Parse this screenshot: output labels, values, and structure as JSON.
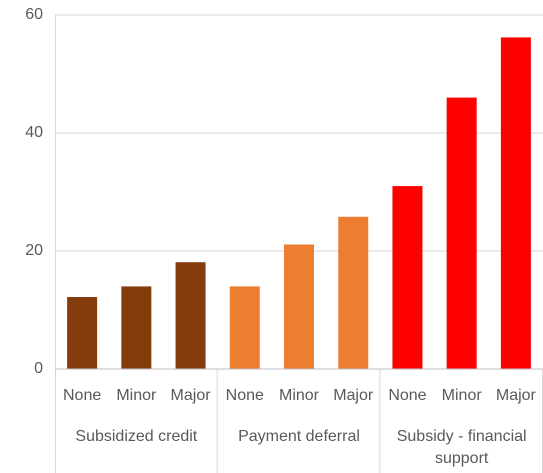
{
  "chart_data": {
    "type": "bar",
    "groups": [
      {
        "label": "Subsidized credit",
        "color": "#843c0c",
        "categories": [
          "None",
          "Minor",
          "Major"
        ],
        "values": [
          12.2,
          14,
          18.1
        ]
      },
      {
        "label": "Payment deferral",
        "color": "#ed7d31",
        "categories": [
          "None",
          "Minor",
          "Major"
        ],
        "values": [
          14,
          21.1,
          25.8
        ]
      },
      {
        "label": "Subsidy - financial support",
        "color": "#ff0000",
        "categories": [
          "None",
          "Minor",
          "Major"
        ],
        "values": [
          31,
          46,
          56.2
        ]
      }
    ],
    "ylim": [
      0,
      60
    ],
    "yticks": [
      0,
      20,
      40,
      60
    ],
    "grid": true
  }
}
